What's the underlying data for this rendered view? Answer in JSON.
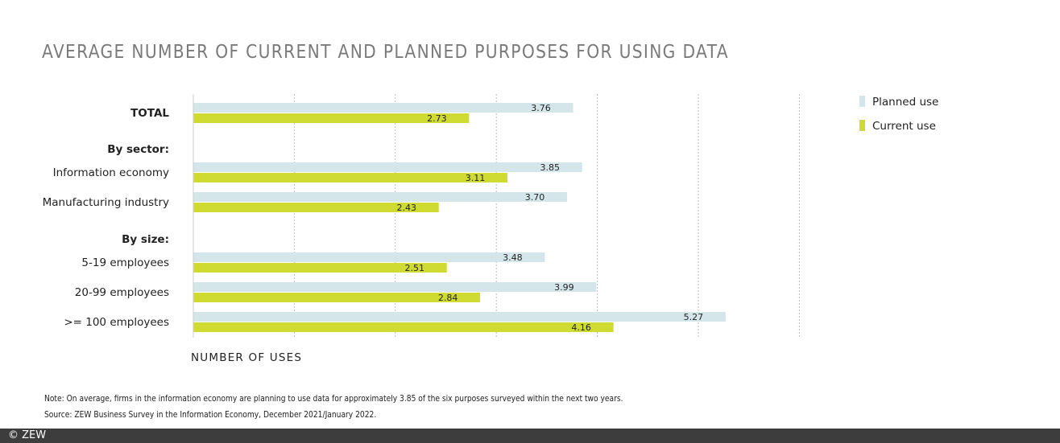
{
  "chart_data": {
    "type": "bar",
    "orientation": "horizontal",
    "title": "AVERAGE NUMBER OF CURRENT AND PLANNED PURPOSES FOR USING DATA",
    "xlabel": "NUMBER OF USES",
    "xlim": [
      0,
      6
    ],
    "grid": true,
    "legend_position": "top-right",
    "rows": [
      {
        "label": "TOTAL",
        "bold": true,
        "planned": 3.76,
        "current": 2.73
      },
      {
        "label": "By sector:",
        "header": true
      },
      {
        "label": "Information economy",
        "planned": 3.85,
        "current": 3.11
      },
      {
        "label": "Manufacturing industry",
        "planned": 3.7,
        "current": 2.43
      },
      {
        "label": "By size:",
        "header": true
      },
      {
        "label": "5-19 employees",
        "planned": 3.48,
        "current": 2.51
      },
      {
        "label": "20-99 employees",
        "planned": 3.99,
        "current": 2.84
      },
      {
        "label": ">= 100 employees",
        "planned": 5.27,
        "current": 4.16
      }
    ],
    "series": [
      {
        "name": "Planned use",
        "key": "planned",
        "color": "#d5e6ea"
      },
      {
        "name": "Current use",
        "key": "current",
        "color": "#cfdb33"
      }
    ]
  },
  "notes": {
    "note": "Note: On average, firms in the information economy are planning to use data for approximately 3.85 of the six purposes surveyed within the next two years.",
    "source": "Source: ZEW Business Survey in the Information Economy, December 2021/January 2022."
  },
  "footer": {
    "copyright": "© ZEW"
  }
}
